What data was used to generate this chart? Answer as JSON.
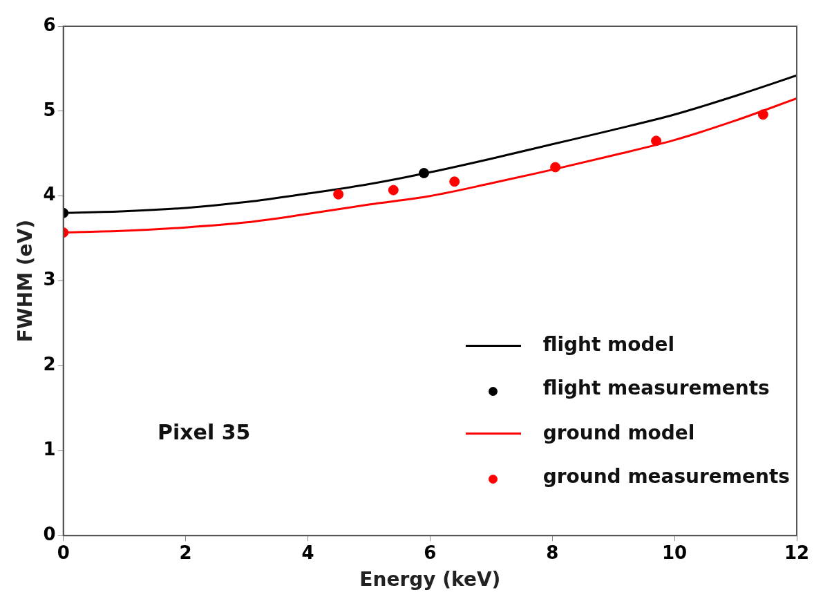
{
  "chart_data": {
    "type": "line",
    "xlabel": "Energy (keV)",
    "ylabel": "FWHM (eV)",
    "xlim": [
      0,
      12
    ],
    "ylim": [
      0,
      6
    ],
    "xticks": [
      0,
      2,
      4,
      6,
      8,
      10,
      12
    ],
    "yticks": [
      0,
      1,
      2,
      3,
      4,
      5,
      6
    ],
    "grid": false,
    "legend": "bottom right",
    "annotations": [
      "Pixel 35"
    ],
    "series": [
      {
        "name": "flight model",
        "type": "line",
        "color": "#000000",
        "x": [
          0,
          1,
          2,
          3,
          4,
          5,
          6,
          7,
          8,
          9,
          10,
          11,
          12
        ],
        "values": [
          3.8,
          3.82,
          3.86,
          3.93,
          4.03,
          4.14,
          4.28,
          4.44,
          4.61,
          4.78,
          4.96,
          5.18,
          5.42
        ]
      },
      {
        "name": "flight measurements",
        "type": "scatter",
        "color": "#000000",
        "x": [
          0,
          5.9
        ],
        "values": [
          3.8,
          4.27
        ]
      },
      {
        "name": "ground model",
        "type": "line",
        "color": "#ff0000",
        "x": [
          0,
          1,
          2,
          3,
          4,
          5,
          6,
          7,
          8,
          9,
          10,
          11,
          12
        ],
        "values": [
          3.57,
          3.59,
          3.63,
          3.69,
          3.79,
          3.9,
          4.0,
          4.15,
          4.31,
          4.48,
          4.66,
          4.89,
          5.15
        ]
      },
      {
        "name": "ground measurements",
        "type": "scatter",
        "color": "#ff0000",
        "x": [
          0,
          4.5,
          5.4,
          6.4,
          8.05,
          9.7,
          11.45
        ],
        "values": [
          3.57,
          4.02,
          4.07,
          4.17,
          4.34,
          4.65,
          4.96
        ]
      }
    ]
  }
}
